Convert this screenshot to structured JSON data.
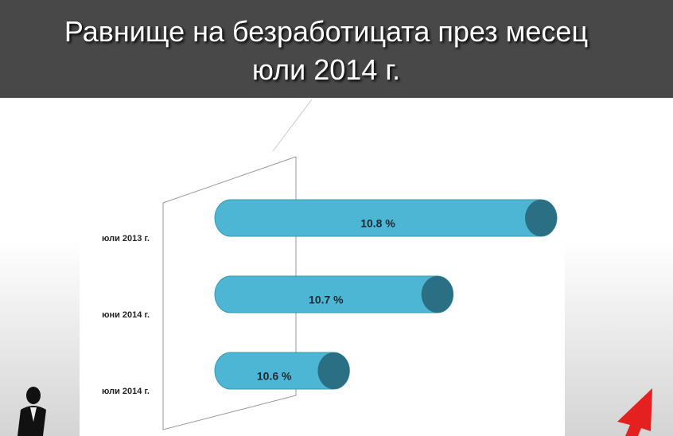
{
  "chart_data": {
    "type": "bar",
    "orientation": "horizontal",
    "title": "Равнище на безработицата през месец юли 2014 г.",
    "categories": [
      "юли 2013 г.",
      "юни 2014 г.",
      "юли 2014 г."
    ],
    "values": [
      10.8,
      10.7,
      10.6
    ],
    "value_labels": [
      "10.8 %",
      "10.7 %",
      "10.6 %"
    ],
    "color": "#4db6d4",
    "xlim": [
      10.47,
      10.8
    ]
  }
}
